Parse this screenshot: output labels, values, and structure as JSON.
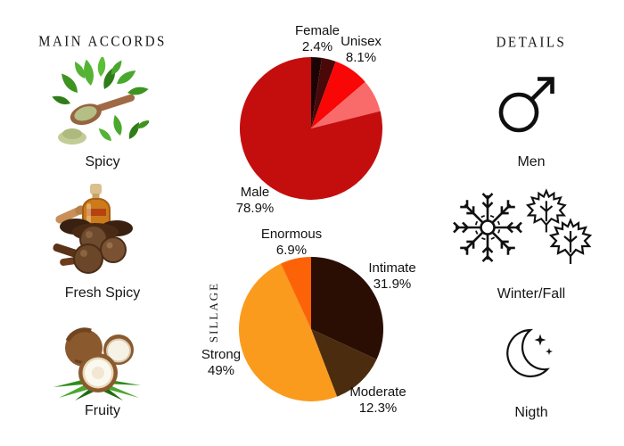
{
  "accords": {
    "header": "MAIN ACCORDS",
    "items": [
      {
        "label": "Spicy",
        "image": "oregano-herbs-wooden-spoon"
      },
      {
        "label": "Fresh Spicy",
        "image": "cloves-essential-oil-bottle"
      },
      {
        "label": "Fruity",
        "image": "coconuts-palm-leaves"
      }
    ]
  },
  "details": {
    "header": "DETAILS",
    "items": [
      {
        "label": "Men",
        "icon": "male-symbol"
      },
      {
        "label": "Winter/Fall",
        "icon": "snowflake-and-maple-leaves"
      },
      {
        "label": "Nigth",
        "icon": "crescent-moon-with-sparkles"
      }
    ]
  },
  "chart_data": [
    {
      "type": "pie",
      "name": "gender-audience",
      "start_angle_deg": -90,
      "direction": "clockwise",
      "slices": [
        {
          "label": "Female",
          "display": "2.4%",
          "value": 2.4,
          "color": "#1d0404"
        },
        {
          "label": "",
          "display": "",
          "value": 3.2,
          "color": "#4a0808"
        },
        {
          "label": "Unisex",
          "display": "8.1%",
          "value": 8.1,
          "color": "#f90606"
        },
        {
          "label": "",
          "display": "",
          "value": 7.4,
          "color": "#f96a6a"
        },
        {
          "label": "Male",
          "display": "78.9%",
          "value": 78.9,
          "color": "#c40e0e"
        }
      ]
    },
    {
      "type": "pie",
      "name": "sillage",
      "axis_label": "SILLAGE",
      "start_angle_deg": -90,
      "direction": "clockwise",
      "slices": [
        {
          "label": "Intimate",
          "display": "31.9%",
          "value": 31.9,
          "color": "#2a0e04"
        },
        {
          "label": "Moderate",
          "display": "12.3%",
          "value": 12.3,
          "color": "#4c2c0e"
        },
        {
          "label": "Strong",
          "display": "49%",
          "value": 49,
          "color": "#fb9b1e"
        },
        {
          "label": "Enormous",
          "display": "6.9%",
          "value": 6.9,
          "color": "#fc6309"
        }
      ]
    }
  ]
}
